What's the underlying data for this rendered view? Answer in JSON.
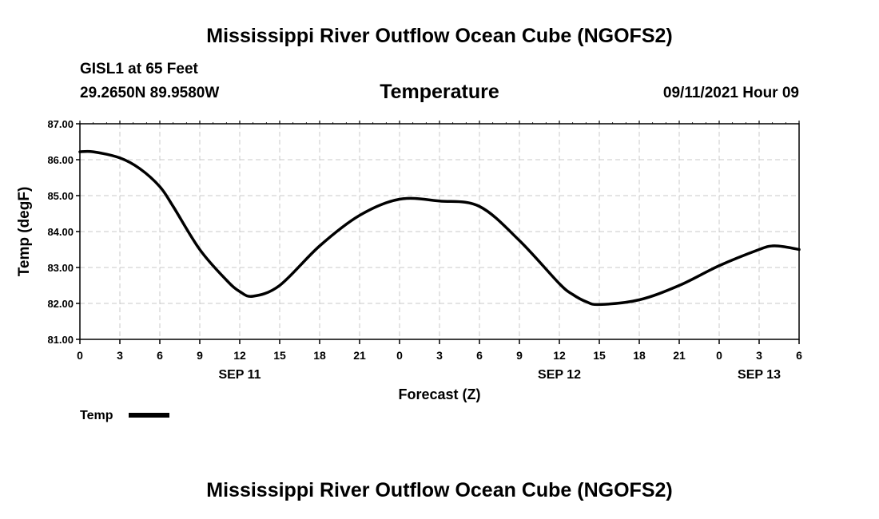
{
  "header": {
    "main_title": "Mississippi River Outflow Ocean Cube (NGOFS2)",
    "station": "GISL1 at 65 Feet",
    "coords": "29.2650N  89.9580W",
    "plot_title": "Temperature",
    "datetime": "09/11/2021 Hour 09"
  },
  "footer": {
    "title": "Mississippi River Outflow Ocean Cube (NGOFS2)"
  },
  "chart_data": {
    "type": "line",
    "title": "Temperature",
    "xlabel": "Forecast (Z)",
    "ylabel": "Temp (degF)",
    "ylim": [
      81.0,
      87.0
    ],
    "xlim": [
      0,
      54
    ],
    "grid": true,
    "y_ticks": [
      "81.00",
      "82.00",
      "83.00",
      "84.00",
      "85.00",
      "86.00",
      "87.00"
    ],
    "x_ticks": [
      "0",
      "3",
      "6",
      "9",
      "12",
      "15",
      "18",
      "21",
      "0",
      "3",
      "6",
      "9",
      "12",
      "15",
      "18",
      "21",
      "0",
      "3",
      "6"
    ],
    "x_tick_hours": [
      0,
      3,
      6,
      9,
      12,
      15,
      18,
      21,
      24,
      27,
      30,
      33,
      36,
      39,
      42,
      45,
      48,
      51,
      54
    ],
    "date_labels": [
      {
        "hour": 12,
        "label": "SEP 11"
      },
      {
        "hour": 36,
        "label": "SEP 12"
      },
      {
        "hour": 51,
        "label": "SEP 13"
      }
    ],
    "legend": {
      "label": "Temp",
      "position": "bottom-left"
    },
    "series": [
      {
        "name": "Temp",
        "x": [
          0,
          1,
          3,
          4.5,
          6,
          7,
          9,
          11,
          12,
          13,
          15,
          18,
          21,
          24,
          27,
          30,
          33,
          36,
          37,
          38,
          39,
          42,
          45,
          48,
          51,
          52,
          53,
          54
        ],
        "values": [
          86.22,
          86.22,
          86.05,
          85.75,
          85.25,
          84.7,
          83.5,
          82.65,
          82.33,
          82.2,
          82.5,
          83.6,
          84.45,
          84.9,
          84.85,
          84.7,
          83.75,
          82.55,
          82.25,
          82.05,
          81.97,
          82.1,
          82.5,
          83.05,
          83.5,
          83.6,
          83.57,
          83.5
        ]
      }
    ]
  }
}
